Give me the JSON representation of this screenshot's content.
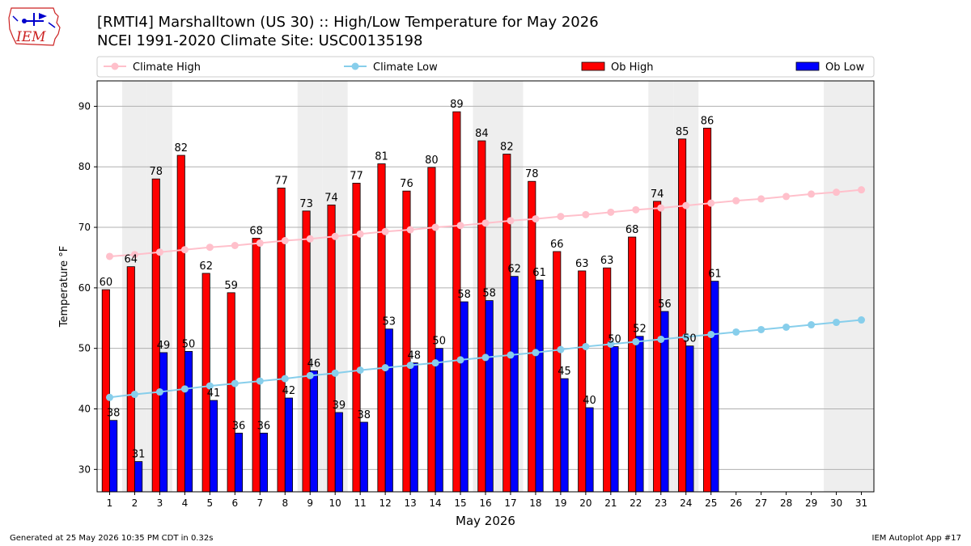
{
  "header": {
    "title_line1": "[RMTI4] Marshalltown (US 30) :: High/Low Temperature for May 2026",
    "title_line2": "NCEI 1991-2020 Climate Site: USC00135198",
    "logo_text": "IEM"
  },
  "footer": {
    "left": "Generated at 25 May 2026 10:35 PM CDT in 0.32s",
    "right": "IEM Autoplot App #17"
  },
  "colors": {
    "ob_high": "#ff0000",
    "ob_low": "#0000ff",
    "climate_high": "#ffc0cb",
    "climate_low": "#87ceeb",
    "weekend_band": "#eeeeee",
    "grid": "#b0b0b0"
  },
  "chart_data": {
    "type": "bar",
    "xlabel": "May 2026",
    "ylabel": "Temperature °F",
    "xlim": [
      0.5,
      31.5
    ],
    "ylim": [
      26.3,
      94.2
    ],
    "yticks": [
      30,
      40,
      50,
      60,
      70,
      80,
      90
    ],
    "grid": "horizontal",
    "legend_position": "top",
    "weekend_days": [
      2,
      3,
      9,
      10,
      16,
      17,
      23,
      24,
      30,
      31
    ],
    "days": [
      1,
      2,
      3,
      4,
      5,
      6,
      7,
      8,
      9,
      10,
      11,
      12,
      13,
      14,
      15,
      16,
      17,
      18,
      19,
      20,
      21,
      22,
      23,
      24,
      25,
      26,
      27,
      28,
      29,
      30,
      31
    ],
    "series": [
      {
        "name": "Climate High",
        "kind": "line",
        "values": [
          65.2,
          65.5,
          65.9,
          66.3,
          66.7,
          67.0,
          67.4,
          67.8,
          68.1,
          68.5,
          68.9,
          69.3,
          69.6,
          70.0,
          70.3,
          70.7,
          71.1,
          71.4,
          71.8,
          72.1,
          72.5,
          72.9,
          73.2,
          73.6,
          74.0,
          74.4,
          74.7,
          75.1,
          75.5,
          75.8,
          76.2
        ]
      },
      {
        "name": "Climate Low",
        "kind": "line",
        "values": [
          41.9,
          42.4,
          42.8,
          43.3,
          43.8,
          44.2,
          44.6,
          45.0,
          45.5,
          45.9,
          46.4,
          46.8,
          47.2,
          47.6,
          48.1,
          48.5,
          48.9,
          49.3,
          49.8,
          50.3,
          50.7,
          51.1,
          51.5,
          51.9,
          52.3,
          52.7,
          53.1,
          53.5,
          53.9,
          54.3,
          54.7
        ]
      },
      {
        "name": "Ob High",
        "kind": "bar",
        "values": [
          60,
          64,
          78,
          82,
          62,
          59,
          68,
          77,
          73,
          74,
          77,
          81,
          76,
          80,
          89,
          84,
          82,
          78,
          66,
          63,
          63,
          68,
          74,
          85,
          86
        ],
        "raw": [
          59.7,
          63.5,
          78.0,
          81.9,
          62.4,
          59.2,
          68.2,
          76.5,
          72.7,
          73.7,
          77.3,
          80.5,
          76.0,
          79.9,
          89.1,
          84.3,
          82.1,
          77.6,
          66.0,
          62.8,
          63.3,
          68.4,
          74.3,
          84.6,
          86.4
        ]
      },
      {
        "name": "Ob Low",
        "kind": "bar",
        "values": [
          38,
          31,
          49,
          50,
          41,
          36,
          36,
          42,
          46,
          39,
          38,
          53,
          48,
          50,
          58,
          58,
          62,
          61,
          45,
          40,
          50,
          52,
          56,
          50,
          61
        ],
        "raw": [
          38.1,
          31.3,
          49.3,
          49.5,
          41.4,
          36.0,
          36.0,
          41.8,
          46.3,
          39.4,
          37.8,
          53.2,
          47.6,
          50.0,
          57.7,
          57.9,
          61.9,
          61.3,
          45.0,
          40.2,
          50.3,
          52.0,
          56.1,
          50.4,
          61.1
        ]
      }
    ]
  }
}
